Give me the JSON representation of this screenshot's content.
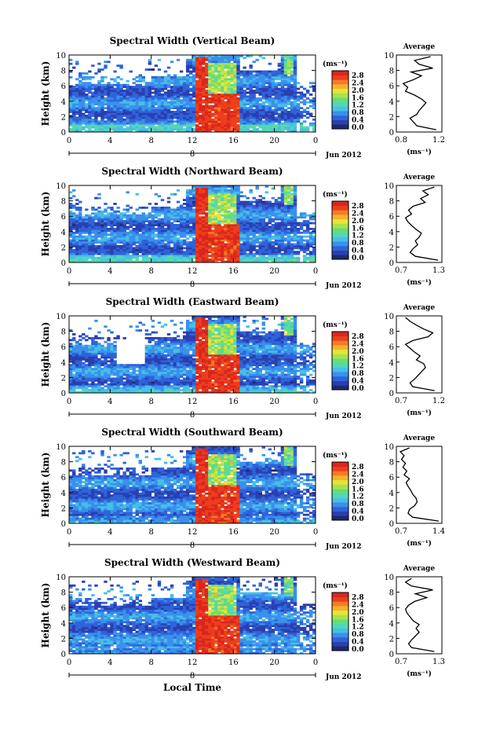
{
  "colorbar": {
    "unit": "(ms⁻¹)",
    "ticks": [
      "0.0",
      "0.4",
      "0.8",
      "1.2",
      "1.6",
      "2.0",
      "2.4",
      "2.8"
    ],
    "colors": [
      "#1f2a6b",
      "#2b3fb0",
      "#2f63d9",
      "#3a90ec",
      "#46bfe6",
      "#50d8b8",
      "#66dd7a",
      "#a8e24c",
      "#e5e43b",
      "#f6b12a",
      "#f57c23",
      "#ec3e1d",
      "#d9261e"
    ]
  },
  "x_axis": {
    "label": "Local Time",
    "ticks": [
      "0",
      "4",
      "8",
      "12",
      "16",
      "20",
      "0"
    ],
    "date_marker": "8",
    "date_label": "Jun 2012"
  },
  "y_axis": {
    "label": "Height (km)",
    "ticks": [
      "0",
      "2",
      "4",
      "6",
      "8",
      "10"
    ]
  },
  "average_panel_title": "Average",
  "average_xlabel": "(ms⁻¹)",
  "chart_data": [
    {
      "type": "heatmap",
      "title": "Spectral Width (Vertical Beam)",
      "xlabel": "",
      "ylabel": "Height (km)",
      "xlim": [
        0,
        24
      ],
      "ylim": [
        0,
        10
      ],
      "zlim": [
        0,
        2.8
      ],
      "unit": "ms-1",
      "average_profile": {
        "xlim": [
          0.8,
          1.2
        ],
        "xticks": [
          "0.8",
          "1.2"
        ],
        "height": [
          0.3,
          0.8,
          1.3,
          1.8,
          2.3,
          2.8,
          3.3,
          3.8,
          4.3,
          4.8,
          5.3,
          5.8,
          6.3,
          6.8,
          7.3,
          7.8,
          8.3,
          8.8,
          9.3,
          9.8
        ],
        "value": [
          1.15,
          0.98,
          0.95,
          0.92,
          0.98,
          1.0,
          1.03,
          1.06,
          1.02,
          0.96,
          0.88,
          0.9,
          0.86,
          0.95,
          1.02,
          0.93,
          1.12,
          1.0,
          0.96,
          1.1
        ]
      }
    },
    {
      "type": "heatmap",
      "title": "Spectral Width (Northward Beam)",
      "xlabel": "",
      "ylabel": "Height (km)",
      "xlim": [
        0,
        24
      ],
      "ylim": [
        0,
        10
      ],
      "zlim": [
        0,
        2.8
      ],
      "unit": "ms-1",
      "average_profile": {
        "xlim": [
          0.7,
          1.3
        ],
        "xticks": [
          "0.7",
          "1.3"
        ],
        "height": [
          0.3,
          0.8,
          1.3,
          1.8,
          2.3,
          2.8,
          3.3,
          3.8,
          4.3,
          4.8,
          5.3,
          5.8,
          6.3,
          6.8,
          7.3,
          7.8,
          8.3,
          8.8,
          9.3,
          9.8
        ],
        "value": [
          1.25,
          0.95,
          0.88,
          0.92,
          0.98,
          0.95,
          1.0,
          1.03,
          0.96,
          0.9,
          0.85,
          0.82,
          0.9,
          0.86,
          0.92,
          1.08,
          1.02,
          1.12,
          1.05,
          1.2
        ]
      }
    },
    {
      "type": "heatmap",
      "title": "Spectral Width (Eastward Beam)",
      "xlabel": "",
      "ylabel": "Height (km)",
      "xlim": [
        0,
        24
      ],
      "ylim": [
        0,
        10
      ],
      "zlim": [
        0,
        2.8
      ],
      "unit": "ms-1",
      "average_profile": {
        "xlim": [
          0.7,
          1.2
        ],
        "xticks": [
          "0.7",
          "1.2"
        ],
        "height": [
          0.3,
          0.8,
          1.3,
          1.8,
          2.3,
          2.8,
          3.3,
          3.8,
          4.3,
          4.8,
          5.3,
          5.8,
          6.3,
          6.8,
          7.3,
          7.8,
          8.3,
          8.8,
          9.3,
          9.8
        ],
        "value": [
          1.12,
          0.88,
          0.85,
          0.9,
          0.94,
          0.98,
          1.02,
          1.0,
          0.92,
          0.96,
          0.9,
          0.85,
          0.8,
          0.88,
          1.05,
          1.1,
          1.0,
          0.92,
          0.85,
          0.8
        ]
      }
    },
    {
      "type": "heatmap",
      "title": "Spectral Width (Southward Beam)",
      "xlabel": "",
      "ylabel": "Height (km)",
      "xlim": [
        0,
        24
      ],
      "ylim": [
        0,
        10
      ],
      "zlim": [
        0,
        2.8
      ],
      "unit": "ms-1",
      "average_profile": {
        "xlim": [
          0.7,
          1.4
        ],
        "xticks": [
          "0.7",
          "1.4"
        ],
        "height": [
          0.3,
          0.8,
          1.3,
          1.8,
          2.3,
          2.8,
          3.3,
          3.8,
          4.3,
          4.8,
          5.3,
          5.8,
          6.3,
          6.8,
          7.3,
          7.8,
          8.3,
          8.8,
          9.3,
          9.8
        ],
        "value": [
          1.35,
          0.95,
          0.88,
          0.9,
          0.98,
          1.02,
          1.0,
          0.95,
          0.92,
          0.88,
          0.85,
          0.9,
          0.82,
          0.86,
          0.8,
          0.84,
          0.78,
          0.82,
          0.76,
          0.9
        ]
      }
    },
    {
      "type": "heatmap",
      "title": "Spectral Width (Westward Beam)",
      "xlabel": "Local Time",
      "ylabel": "Height (km)",
      "xlim": [
        0,
        24
      ],
      "ylim": [
        0,
        10
      ],
      "zlim": [
        0,
        2.8
      ],
      "unit": "ms-1",
      "average_profile": {
        "xlim": [
          0.7,
          1.3
        ],
        "xticks": [
          "0.7",
          "1.3"
        ],
        "height": [
          0.3,
          0.8,
          1.3,
          1.8,
          2.3,
          2.8,
          3.3,
          3.8,
          4.3,
          4.8,
          5.3,
          5.8,
          6.3,
          6.8,
          7.3,
          7.8,
          8.3,
          8.8,
          9.3,
          9.8
        ],
        "value": [
          1.2,
          0.9,
          0.86,
          0.9,
          0.95,
          1.0,
          0.96,
          1.0,
          0.92,
          0.88,
          0.84,
          0.82,
          0.86,
          0.94,
          1.1,
          0.95,
          1.18,
          0.9,
          0.82,
          0.9
        ]
      }
    }
  ]
}
